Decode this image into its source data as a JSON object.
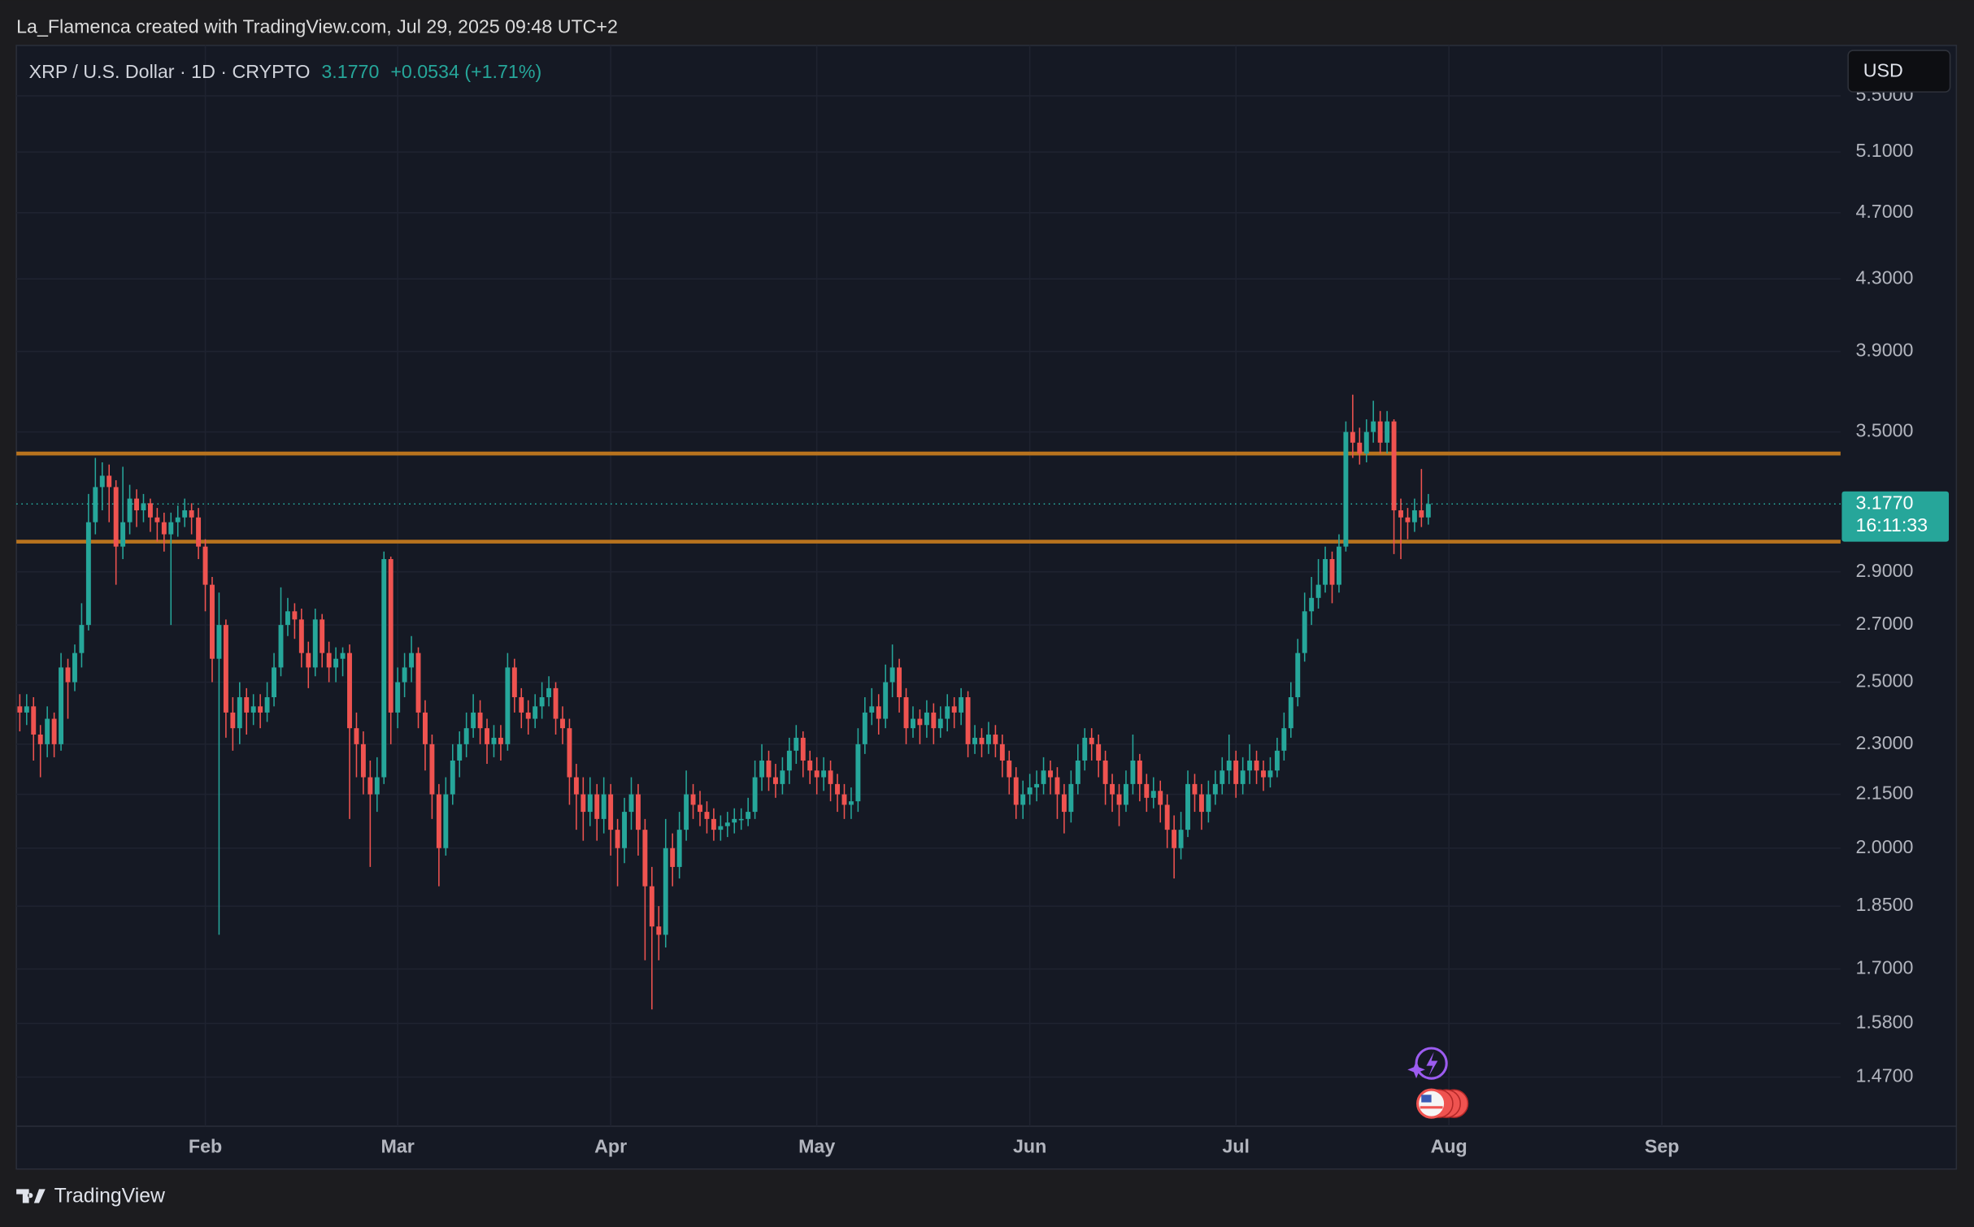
{
  "header": {
    "credit": "La_Flamenca created with TradingView.com, Jul 29, 2025 09:48 UTC+2"
  },
  "footer": {
    "brand": "TradingView"
  },
  "chart_data": {
    "type": "candlestick",
    "symbol": "XRP / U.S. Dollar · 1D · CRYPTO",
    "change": "+0.0534 (+1.71%)",
    "currency": "USD",
    "countdown": "16:11:33",
    "last_price": {
      "value": 3.177,
      "label": "3.1770"
    },
    "up_color": "#26a69a",
    "down_color": "#ef5350",
    "log_scale": true,
    "grid": true,
    "hlines": [
      {
        "value": 3.4,
        "color": "#b8731e"
      },
      {
        "value": 3.02,
        "color": "#b8731e"
      }
    ],
    "xlim": [
      -0.5,
      265
    ],
    "ylim": [
      1.376,
      5.886
    ],
    "xticks": [
      {
        "value": 27,
        "label": "Feb"
      },
      {
        "value": 55,
        "label": "Mar"
      },
      {
        "value": 86,
        "label": "Apr"
      },
      {
        "value": 116,
        "label": "May"
      },
      {
        "value": 147,
        "label": "Jun"
      },
      {
        "value": 177,
        "label": "Jul"
      },
      {
        "value": 208,
        "label": "Aug"
      },
      {
        "value": 239,
        "label": "Sep"
      }
    ],
    "yticks": [
      {
        "value": 1.47,
        "label": "1.4700"
      },
      {
        "value": 1.58,
        "label": "1.5800"
      },
      {
        "value": 1.7,
        "label": "1.7000"
      },
      {
        "value": 1.85,
        "label": "1.8500"
      },
      {
        "value": 2.0,
        "label": "2.0000"
      },
      {
        "value": 2.15,
        "label": "2.1500"
      },
      {
        "value": 2.3,
        "label": "2.3000"
      },
      {
        "value": 2.5,
        "label": "2.5000"
      },
      {
        "value": 2.7,
        "label": "2.7000"
      },
      {
        "value": 2.9,
        "label": "2.9000"
      },
      {
        "value": 3.5,
        "label": "3.5000"
      },
      {
        "value": 3.9,
        "label": "3.9000"
      },
      {
        "value": 4.3,
        "label": "4.3000"
      },
      {
        "value": 4.7,
        "label": "4.7000"
      },
      {
        "value": 5.1,
        "label": "5.1000"
      },
      {
        "value": 5.5,
        "label": "5.5000"
      }
    ],
    "open": [
      2.42,
      2.4,
      2.42,
      2.33,
      2.3,
      2.38,
      2.3,
      2.55,
      2.5,
      2.6,
      2.7,
      3.1,
      3.25,
      3.3,
      3.25,
      3.0,
      3.1,
      3.2,
      3.15,
      3.18,
      3.12,
      3.1,
      3.05,
      3.1,
      3.12,
      3.15,
      3.12,
      3.0,
      2.85,
      2.58,
      2.7,
      2.4,
      2.35,
      2.45,
      2.4,
      2.42,
      2.4,
      2.45,
      2.55,
      2.7,
      2.75,
      2.72,
      2.6,
      2.55,
      2.72,
      2.6,
      2.55,
      2.58,
      2.6,
      2.35,
      2.3,
      2.2,
      2.15,
      2.2,
      2.95,
      2.4,
      2.5,
      2.55,
      2.6,
      2.4,
      2.3,
      2.15,
      2.0,
      2.15,
      2.25,
      2.3,
      2.35,
      2.4,
      2.35,
      2.3,
      2.32,
      2.3,
      2.55,
      2.45,
      2.4,
      2.38,
      2.42,
      2.45,
      2.48,
      2.38,
      2.35,
      2.2,
      2.15,
      2.1,
      2.15,
      2.08,
      2.15,
      2.05,
      2.0,
      2.1,
      2.15,
      2.05,
      1.9,
      1.8,
      1.78,
      2.0,
      1.95,
      2.05,
      2.15,
      2.12,
      2.1,
      2.08,
      2.05,
      2.06,
      2.07,
      2.08,
      2.08,
      2.1,
      2.2,
      2.25,
      2.2,
      2.18,
      2.22,
      2.28,
      2.32,
      2.25,
      2.22,
      2.2,
      2.22,
      2.18,
      2.15,
      2.12,
      2.13,
      2.3,
      2.4,
      2.42,
      2.38,
      2.5,
      2.55,
      2.45,
      2.35,
      2.38,
      2.36,
      2.4,
      2.35,
      2.38,
      2.42,
      2.4,
      2.45,
      2.3,
      2.32,
      2.3,
      2.33,
      2.3,
      2.25,
      2.2,
      2.12,
      2.15,
      2.17,
      2.18,
      2.22,
      2.2,
      2.15,
      2.1,
      2.18,
      2.25,
      2.32,
      2.3,
      2.25,
      2.18,
      2.15,
      2.12,
      2.18,
      2.25,
      2.18,
      2.14,
      2.16,
      2.12,
      2.05,
      2.0,
      2.05,
      2.18,
      2.15,
      2.1,
      2.15,
      2.18,
      2.22,
      2.25,
      2.18,
      2.22,
      2.25,
      2.22,
      2.2,
      2.22,
      2.28,
      2.35,
      2.45,
      2.6,
      2.75,
      2.8,
      2.85,
      2.95,
      2.85,
      3.0,
      3.5,
      3.45,
      3.4,
      3.5,
      3.55,
      3.45,
      3.55,
      3.15,
      3.12,
      3.1,
      3.15,
      3.12
    ],
    "high": [
      2.46,
      2.46,
      2.45,
      2.36,
      2.42,
      2.4,
      2.6,
      2.58,
      2.63,
      2.78,
      3.22,
      3.38,
      3.36,
      3.35,
      3.28,
      3.34,
      3.26,
      3.24,
      3.22,
      3.2,
      3.16,
      3.14,
      3.14,
      3.17,
      3.2,
      3.18,
      3.16,
      3.03,
      2.88,
      2.82,
      2.72,
      2.45,
      2.5,
      2.48,
      2.46,
      2.46,
      2.5,
      2.6,
      2.84,
      2.8,
      2.78,
      2.76,
      2.64,
      2.76,
      2.74,
      2.64,
      2.62,
      2.62,
      2.63,
      2.4,
      2.34,
      2.25,
      2.26,
      2.98,
      2.96,
      2.55,
      2.6,
      2.66,
      2.62,
      2.44,
      2.33,
      2.18,
      2.2,
      2.3,
      2.34,
      2.4,
      2.46,
      2.44,
      2.38,
      2.36,
      2.36,
      2.6,
      2.58,
      2.48,
      2.44,
      2.46,
      2.5,
      2.52,
      2.5,
      2.42,
      2.38,
      2.24,
      2.2,
      2.2,
      2.18,
      2.2,
      2.18,
      2.08,
      2.14,
      2.2,
      2.18,
      2.08,
      1.95,
      1.85,
      2.08,
      2.04,
      2.1,
      2.22,
      2.18,
      2.16,
      2.13,
      2.11,
      2.09,
      2.1,
      2.11,
      2.11,
      2.14,
      2.25,
      2.3,
      2.28,
      2.24,
      2.26,
      2.32,
      2.36,
      2.34,
      2.28,
      2.26,
      2.26,
      2.25,
      2.21,
      2.18,
      2.17,
      2.35,
      2.45,
      2.48,
      2.46,
      2.56,
      2.63,
      2.58,
      2.48,
      2.42,
      2.41,
      2.44,
      2.43,
      2.42,
      2.46,
      2.45,
      2.48,
      2.47,
      2.36,
      2.35,
      2.37,
      2.36,
      2.33,
      2.28,
      2.23,
      2.19,
      2.21,
      2.22,
      2.26,
      2.25,
      2.23,
      2.18,
      2.22,
      2.3,
      2.35,
      2.35,
      2.33,
      2.28,
      2.21,
      2.18,
      2.22,
      2.33,
      2.27,
      2.21,
      2.2,
      2.19,
      2.15,
      2.09,
      2.1,
      2.22,
      2.21,
      2.18,
      2.19,
      2.22,
      2.26,
      2.33,
      2.28,
      2.26,
      2.3,
      2.28,
      2.25,
      2.26,
      2.32,
      2.4,
      2.5,
      2.65,
      2.82,
      2.88,
      2.95,
      3.0,
      2.98,
      3.05,
      3.55,
      3.68,
      3.52,
      3.56,
      3.65,
      3.6,
      3.6,
      3.56,
      3.2,
      3.16,
      3.2,
      3.33,
      3.22
    ],
    "low": [
      2.34,
      2.36,
      2.25,
      2.2,
      2.26,
      2.26,
      2.28,
      2.38,
      2.47,
      2.55,
      2.68,
      3.05,
      3.15,
      3.1,
      2.85,
      2.95,
      3.05,
      3.08,
      3.1,
      3.06,
      3.02,
      2.98,
      2.7,
      3.04,
      3.08,
      3.05,
      2.95,
      2.75,
      2.5,
      1.78,
      2.32,
      2.28,
      2.3,
      2.33,
      2.36,
      2.35,
      2.37,
      2.42,
      2.52,
      2.66,
      2.65,
      2.55,
      2.48,
      2.52,
      2.55,
      2.5,
      2.5,
      2.52,
      2.08,
      2.2,
      2.15,
      1.95,
      2.1,
      2.18,
      2.3,
      2.35,
      2.45,
      2.5,
      2.35,
      2.22,
      2.08,
      1.9,
      1.98,
      2.12,
      2.2,
      2.26,
      2.32,
      2.3,
      2.24,
      2.26,
      2.25,
      2.28,
      2.4,
      2.35,
      2.33,
      2.35,
      2.38,
      2.42,
      2.33,
      2.3,
      2.12,
      2.05,
      2.02,
      2.06,
      2.02,
      2.04,
      1.98,
      1.9,
      1.96,
      2.05,
      1.98,
      1.72,
      1.61,
      1.72,
      1.75,
      1.9,
      1.92,
      2.02,
      2.08,
      2.06,
      2.04,
      2.02,
      2.02,
      2.03,
      2.04,
      2.05,
      2.06,
      2.08,
      2.16,
      2.16,
      2.14,
      2.15,
      2.18,
      2.24,
      2.2,
      2.18,
      2.15,
      2.16,
      2.13,
      2.1,
      2.08,
      2.08,
      2.1,
      2.27,
      2.36,
      2.33,
      2.35,
      2.45,
      2.4,
      2.3,
      2.32,
      2.3,
      2.32,
      2.3,
      2.32,
      2.34,
      2.35,
      2.36,
      2.26,
      2.27,
      2.26,
      2.27,
      2.26,
      2.2,
      2.15,
      2.08,
      2.08,
      2.12,
      2.13,
      2.15,
      2.15,
      2.08,
      2.04,
      2.07,
      2.15,
      2.22,
      2.25,
      2.2,
      2.12,
      2.1,
      2.06,
      2.1,
      2.15,
      2.13,
      2.1,
      2.11,
      2.07,
      2.0,
      1.92,
      1.97,
      2.03,
      2.1,
      2.05,
      2.07,
      2.12,
      2.15,
      2.18,
      2.14,
      2.15,
      2.18,
      2.18,
      2.16,
      2.17,
      2.2,
      2.25,
      2.32,
      2.42,
      2.57,
      2.7,
      2.76,
      2.82,
      2.78,
      2.82,
      2.98,
      3.38,
      3.35,
      3.36,
      3.45,
      3.4,
      3.4,
      2.97,
      2.95,
      3.03,
      3.06,
      3.08,
      3.09
    ],
    "close": [
      2.4,
      2.42,
      2.33,
      2.3,
      2.38,
      2.3,
      2.55,
      2.5,
      2.6,
      2.7,
      3.1,
      3.25,
      3.3,
      3.25,
      3.0,
      3.1,
      3.2,
      3.15,
      3.18,
      3.12,
      3.1,
      3.05,
      3.1,
      3.12,
      3.15,
      3.12,
      3.0,
      2.85,
      2.58,
      2.7,
      2.4,
      2.35,
      2.45,
      2.4,
      2.42,
      2.4,
      2.45,
      2.55,
      2.7,
      2.75,
      2.72,
      2.6,
      2.55,
      2.72,
      2.6,
      2.55,
      2.58,
      2.6,
      2.35,
      2.3,
      2.2,
      2.15,
      2.2,
      2.95,
      2.4,
      2.5,
      2.55,
      2.6,
      2.4,
      2.3,
      2.15,
      2.0,
      2.15,
      2.25,
      2.3,
      2.35,
      2.4,
      2.35,
      2.3,
      2.32,
      2.3,
      2.55,
      2.45,
      2.4,
      2.38,
      2.42,
      2.45,
      2.48,
      2.38,
      2.35,
      2.2,
      2.15,
      2.1,
      2.15,
      2.08,
      2.15,
      2.05,
      2.0,
      2.1,
      2.15,
      2.05,
      1.9,
      1.8,
      1.78,
      2.0,
      1.95,
      2.05,
      2.15,
      2.12,
      2.1,
      2.08,
      2.05,
      2.06,
      2.07,
      2.08,
      2.08,
      2.1,
      2.2,
      2.25,
      2.2,
      2.18,
      2.22,
      2.28,
      2.32,
      2.25,
      2.22,
      2.2,
      2.22,
      2.18,
      2.15,
      2.12,
      2.13,
      2.3,
      2.4,
      2.42,
      2.38,
      2.5,
      2.55,
      2.45,
      2.35,
      2.38,
      2.36,
      2.4,
      2.35,
      2.38,
      2.42,
      2.4,
      2.45,
      2.3,
      2.32,
      2.3,
      2.33,
      2.3,
      2.25,
      2.2,
      2.12,
      2.15,
      2.17,
      2.18,
      2.22,
      2.2,
      2.15,
      2.1,
      2.18,
      2.25,
      2.32,
      2.3,
      2.25,
      2.18,
      2.15,
      2.12,
      2.18,
      2.25,
      2.18,
      2.14,
      2.16,
      2.12,
      2.05,
      2.0,
      2.05,
      2.18,
      2.15,
      2.1,
      2.15,
      2.18,
      2.22,
      2.25,
      2.18,
      2.22,
      2.25,
      2.22,
      2.2,
      2.22,
      2.28,
      2.35,
      2.45,
      2.6,
      2.75,
      2.8,
      2.85,
      2.95,
      2.85,
      3.0,
      3.5,
      3.45,
      3.4,
      3.5,
      3.55,
      3.45,
      3.55,
      3.15,
      3.12,
      3.1,
      3.15,
      3.12,
      3.177
    ]
  }
}
